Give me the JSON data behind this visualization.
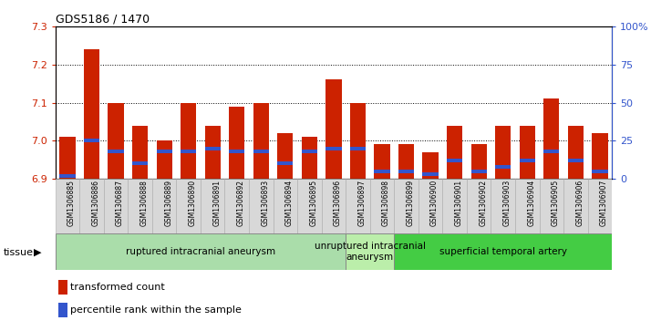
{
  "title": "GDS5186 / 1470",
  "samples": [
    "GSM1306885",
    "GSM1306886",
    "GSM1306887",
    "GSM1306888",
    "GSM1306889",
    "GSM1306890",
    "GSM1306891",
    "GSM1306892",
    "GSM1306893",
    "GSM1306894",
    "GSM1306895",
    "GSM1306896",
    "GSM1306897",
    "GSM1306898",
    "GSM1306899",
    "GSM1306900",
    "GSM1306901",
    "GSM1306902",
    "GSM1306903",
    "GSM1306904",
    "GSM1306905",
    "GSM1306906",
    "GSM1306907"
  ],
  "transformed_count": [
    7.01,
    7.24,
    7.1,
    7.04,
    7.0,
    7.1,
    7.04,
    7.09,
    7.1,
    7.02,
    7.01,
    7.16,
    7.1,
    6.99,
    6.99,
    6.97,
    7.04,
    6.99,
    7.04,
    7.04,
    7.11,
    7.04,
    7.02
  ],
  "percentile_rank": [
    2,
    25,
    18,
    10,
    18,
    18,
    20,
    18,
    18,
    10,
    18,
    20,
    20,
    5,
    5,
    3,
    12,
    5,
    8,
    12,
    18,
    12,
    5
  ],
  "y_min": 6.9,
  "y_max": 7.3,
  "y_ticks": [
    6.9,
    7.0,
    7.1,
    7.2,
    7.3
  ],
  "right_y_ticks": [
    0,
    25,
    50,
    75,
    100
  ],
  "right_y_labels": [
    "0",
    "25",
    "50",
    "75",
    "100%"
  ],
  "bar_color": "#cc2200",
  "percentile_color": "#3355cc",
  "tick_bg_color": "#d8d8d8",
  "groups": [
    {
      "label": "ruptured intracranial aneurysm",
      "start": 0,
      "end": 12,
      "color": "#aaddaa"
    },
    {
      "label": "unruptured intracranial\naneurysm",
      "start": 12,
      "end": 14,
      "color": "#bbeeaa"
    },
    {
      "label": "superficial temporal artery",
      "start": 14,
      "end": 23,
      "color": "#44cc44"
    }
  ],
  "tissue_label": "tissue",
  "legend_red_label": "transformed count",
  "legend_blue_label": "percentile rank within the sample"
}
